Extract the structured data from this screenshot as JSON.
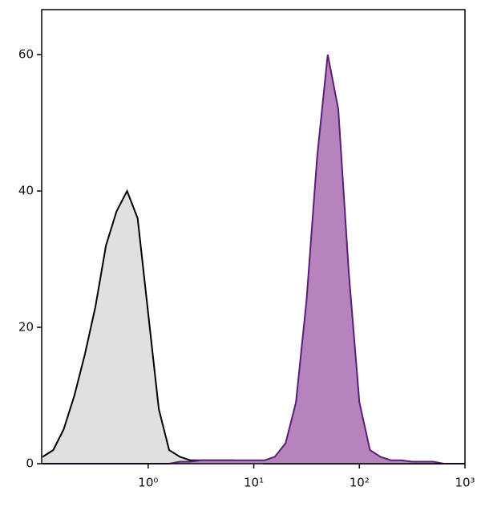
{
  "chart_data": {
    "type": "area",
    "xscale": "log",
    "x": [
      0.1,
      0.126,
      0.158,
      0.2,
      0.251,
      0.316,
      0.398,
      0.501,
      0.631,
      0.794,
      1,
      1.26,
      1.58,
      2,
      2.51,
      3.16,
      3.98,
      5.01,
      6.31,
      7.94,
      10,
      12.6,
      15.8,
      20,
      25.1,
      31.6,
      39.8,
      50.1,
      63.1,
      79.4,
      100,
      126,
      158,
      200,
      251,
      316,
      398,
      501,
      631,
      794,
      1000
    ],
    "series": [
      {
        "color": "#000000",
        "fill": "#e0e0e0",
        "values": [
          1,
          2,
          5,
          10,
          16,
          23,
          32,
          37,
          40,
          36,
          22,
          8,
          2,
          1,
          0.5,
          0.5,
          0.5,
          0.5,
          0.5,
          0.3,
          0.3,
          0,
          0,
          0,
          0,
          0,
          0,
          0,
          0,
          0,
          0,
          0,
          0,
          0,
          0,
          0,
          0,
          0,
          0,
          0,
          0
        ]
      },
      {
        "color": "#5a1e7a",
        "fill": "#b783bd",
        "values": [
          0,
          0,
          0,
          0,
          0,
          0,
          0,
          0,
          0,
          0,
          0,
          0,
          0,
          0.3,
          0.3,
          0.5,
          0.5,
          0.5,
          0.5,
          0.5,
          0.5,
          0.5,
          1,
          3,
          9,
          24,
          45,
          60,
          52,
          28,
          9,
          2,
          1,
          0.5,
          0.5,
          0.3,
          0.3,
          0.3,
          0,
          0,
          0
        ]
      }
    ],
    "xlim": [
      0.098,
      1000
    ],
    "ylim": [
      0,
      66.6
    ],
    "xticks": [
      {
        "value": 1,
        "label": "10⁰"
      },
      {
        "value": 10,
        "label": "10¹"
      },
      {
        "value": 100,
        "label": "10²"
      },
      {
        "value": 1000,
        "label": "10³"
      }
    ],
    "yticks": [
      0,
      20,
      40,
      60
    ]
  }
}
